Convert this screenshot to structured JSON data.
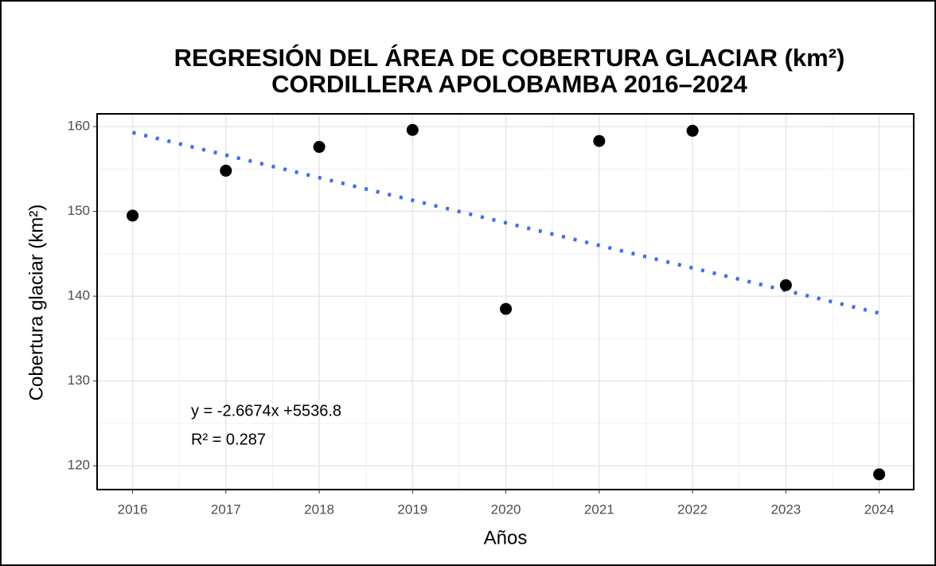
{
  "chart_data": {
    "type": "scatter",
    "title": "REGRESIÓN DEL ÁREA DE COBERTURA GLACIAR (km²)",
    "subtitle": "CORDILLERA APOLOBAMBA 2016–2024",
    "x_label": "Años",
    "y_label": "Cobertura glaciar (km²)",
    "annotations": [
      "y = -2.6674x +5536.8",
      "R² = 0.287"
    ],
    "x": [
      2016,
      2017,
      2018,
      2019,
      2020,
      2021,
      2022,
      2023,
      2024
    ],
    "values": [
      149.5,
      154.8,
      157.6,
      159.6,
      138.5,
      158.3,
      159.5,
      141.3,
      119.0
    ],
    "color": "#000000",
    "trend": {
      "x": [
        2016,
        2024
      ],
      "values": [
        159.3,
        138.0
      ],
      "color": "#3b6ff0"
    },
    "xlim": [
      2015.62,
      2024.37
    ],
    "xticks": [
      2016,
      2017,
      2018,
      2019,
      2020,
      2021,
      2022,
      2023,
      2024
    ],
    "ylim": [
      117.2,
      161.5
    ],
    "yticks": [
      120,
      130,
      140,
      150,
      160
    ],
    "grid": true,
    "minor_grid": true
  }
}
